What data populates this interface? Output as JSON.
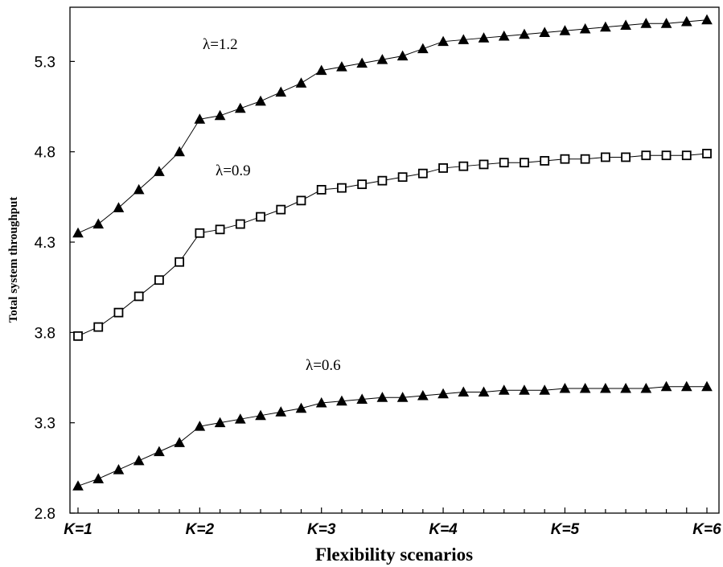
{
  "chart_data": {
    "type": "line",
    "xlabel": "Flexibility scenarios",
    "ylabel": "Total system throughput",
    "x_tick_labels": [
      "K=1",
      "K=2",
      "K=3",
      "K=4",
      "K=5",
      "K=6"
    ],
    "y_ticks": [
      "2.8",
      "3.3",
      "3.8",
      "4.3",
      "4.8",
      "5.3"
    ],
    "ylim": [
      2.8,
      5.6
    ],
    "grid": false,
    "series": [
      {
        "name": "λ=1.2",
        "marker": "filled-triangle",
        "values": [
          4.35,
          4.4,
          4.49,
          4.59,
          4.69,
          4.8,
          4.98,
          5.0,
          5.04,
          5.08,
          5.13,
          5.18,
          5.25,
          5.27,
          5.29,
          5.31,
          5.33,
          5.37,
          5.41,
          5.42,
          5.43,
          5.44,
          5.45,
          5.46,
          5.47,
          5.48,
          5.49,
          5.5,
          5.51,
          5.51,
          5.52,
          5.53
        ]
      },
      {
        "name": "λ=0.9",
        "marker": "open-square",
        "values": [
          3.78,
          3.83,
          3.91,
          4.0,
          4.09,
          4.19,
          4.35,
          4.37,
          4.4,
          4.44,
          4.48,
          4.53,
          4.59,
          4.6,
          4.62,
          4.64,
          4.66,
          4.68,
          4.71,
          4.72,
          4.73,
          4.74,
          4.74,
          4.75,
          4.76,
          4.76,
          4.77,
          4.77,
          4.78,
          4.78,
          4.78,
          4.79
        ]
      },
      {
        "name": "λ=0.6",
        "marker": "filled-triangle",
        "values": [
          2.95,
          2.99,
          3.04,
          3.09,
          3.14,
          3.19,
          3.28,
          3.3,
          3.32,
          3.34,
          3.36,
          3.38,
          3.41,
          3.42,
          3.43,
          3.44,
          3.44,
          3.45,
          3.46,
          3.47,
          3.47,
          3.48,
          3.48,
          3.48,
          3.49,
          3.49,
          3.49,
          3.49,
          3.49,
          3.5,
          3.5,
          3.5
        ]
      }
    ]
  }
}
